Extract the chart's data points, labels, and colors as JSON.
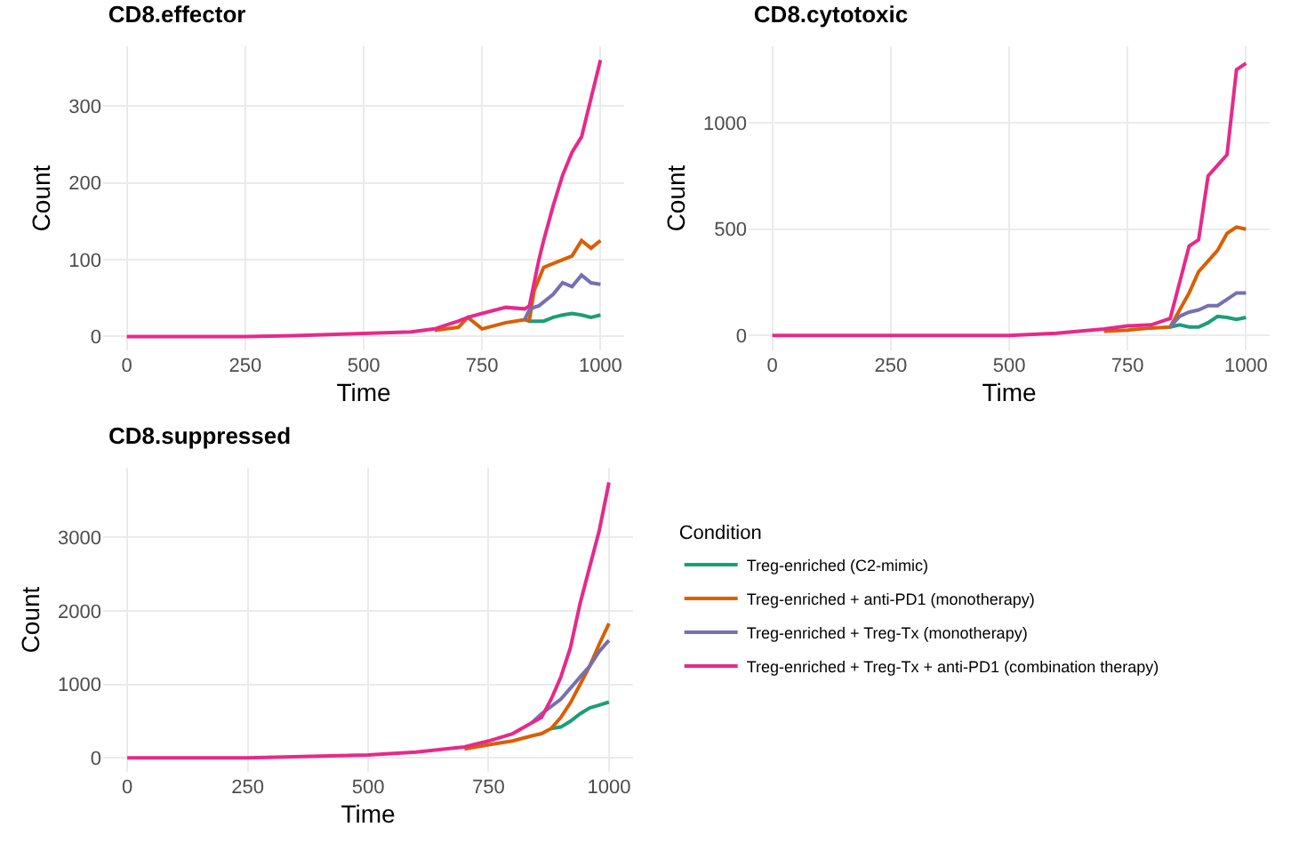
{
  "chart_data": [
    {
      "type": "line",
      "title": "CD8.effector",
      "xlabel": "Time",
      "ylabel": "Count",
      "x": [
        0,
        250,
        350,
        500,
        600,
        650,
        700,
        720,
        750,
        800,
        840,
        850,
        860,
        870,
        880,
        900,
        920,
        940,
        960,
        980,
        1000
      ],
      "xlim": [
        -50,
        1050
      ],
      "xticks": [
        0,
        250,
        500,
        750,
        1000
      ],
      "ylim": [
        -18,
        378
      ],
      "yticks": [
        0,
        100,
        200,
        300
      ],
      "grid": true,
      "legend": false,
      "series": [
        {
          "color": "#1b9e77",
          "values": [
            null,
            null,
            null,
            null,
            null,
            null,
            null,
            null,
            null,
            null,
            22,
            20,
            20,
            20,
            20,
            25,
            28,
            30,
            28,
            25,
            28
          ]
        },
        {
          "color": "#d95f02",
          "values": [
            null,
            null,
            null,
            null,
            null,
            8,
            12,
            25,
            10,
            18,
            22,
            22,
            60,
            75,
            90,
            95,
            100,
            105,
            125,
            115,
            125
          ]
        },
        {
          "color": "#7570b3",
          "values": [
            null,
            null,
            null,
            null,
            null,
            null,
            null,
            null,
            null,
            null,
            22,
            35,
            38,
            40,
            45,
            55,
            70,
            65,
            80,
            70,
            68
          ]
        },
        {
          "color": "#e7298a",
          "values": [
            0,
            0,
            1,
            4,
            6,
            10,
            20,
            25,
            30,
            38,
            36,
            40,
            70,
            100,
            125,
            170,
            210,
            240,
            260,
            310,
            360
          ]
        }
      ]
    },
    {
      "type": "line",
      "title": "CD8.cytotoxic",
      "xlabel": "Time",
      "ylabel": "Count",
      "x": [
        0,
        250,
        500,
        600,
        700,
        750,
        800,
        840,
        860,
        880,
        900,
        920,
        940,
        960,
        980,
        1000
      ],
      "xlim": [
        -50,
        1050
      ],
      "xticks": [
        0,
        250,
        500,
        750,
        1000
      ],
      "ylim": [
        -70,
        1360
      ],
      "yticks": [
        0,
        500,
        1000
      ],
      "grid": true,
      "legend": false,
      "series": [
        {
          "color": "#1b9e77",
          "values": [
            null,
            null,
            null,
            null,
            null,
            null,
            null,
            40,
            50,
            40,
            40,
            60,
            90,
            85,
            75,
            85
          ]
        },
        {
          "color": "#d95f02",
          "values": [
            null,
            null,
            null,
            null,
            20,
            25,
            35,
            40,
            120,
            200,
            300,
            350,
            400,
            480,
            510,
            500
          ]
        },
        {
          "color": "#7570b3",
          "values": [
            null,
            null,
            null,
            null,
            null,
            null,
            null,
            40,
            90,
            110,
            120,
            140,
            140,
            170,
            200,
            200
          ]
        },
        {
          "color": "#e7298a",
          "values": [
            0,
            0,
            0,
            10,
            30,
            45,
            50,
            80,
            250,
            420,
            450,
            750,
            800,
            850,
            1250,
            1280
          ]
        }
      ]
    },
    {
      "type": "line",
      "title": "CD8.suppressed",
      "xlabel": "Time",
      "ylabel": "Count",
      "legend_title": "Condition",
      "x": [
        0,
        250,
        500,
        600,
        700,
        750,
        800,
        840,
        860,
        880,
        900,
        920,
        940,
        960,
        980,
        1000
      ],
      "xlim": [
        -50,
        1050
      ],
      "xticks": [
        0,
        250,
        500,
        750,
        1000
      ],
      "ylim": [
        -190,
        3950
      ],
      "yticks": [
        0,
        1000,
        2000,
        3000
      ],
      "grid": true,
      "legend": "right",
      "series": [
        {
          "name": "Treg-enriched (C2-mimic)",
          "color": "#1b9e77",
          "values": [
            null,
            null,
            null,
            null,
            null,
            null,
            null,
            null,
            null,
            400,
            420,
            500,
            600,
            680,
            720,
            760
          ]
        },
        {
          "name": "Treg-enriched + anti-PD1 (monotherapy)",
          "color": "#d95f02",
          "values": [
            null,
            null,
            null,
            null,
            120,
            180,
            230,
            300,
            330,
            400,
            550,
            750,
            1000,
            1250,
            1550,
            1830
          ]
        },
        {
          "name": "Treg-enriched + Treg-Tx (monotherapy)",
          "color": "#7570b3",
          "values": [
            null,
            null,
            null,
            null,
            null,
            null,
            null,
            480,
            600,
            700,
            800,
            950,
            1100,
            1250,
            1450,
            1600
          ]
        },
        {
          "name": "Treg-enriched + Treg-Tx + anti-PD1 (combination therapy)",
          "color": "#e7298a",
          "values": [
            0,
            0,
            40,
            80,
            150,
            230,
            330,
            480,
            550,
            800,
            1100,
            1500,
            2100,
            2600,
            3100,
            3750
          ]
        }
      ]
    }
  ]
}
